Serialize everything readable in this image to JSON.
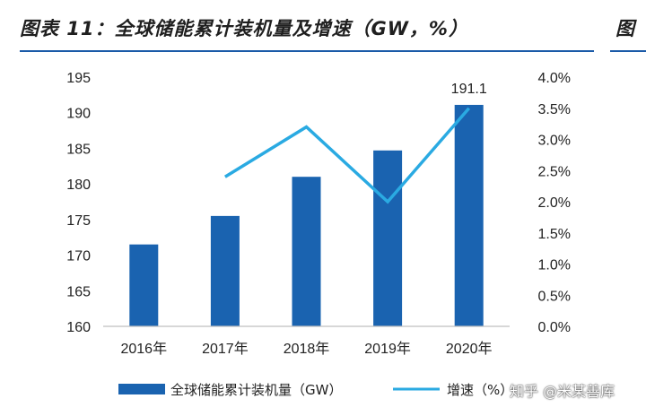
{
  "header": {
    "title": "图表 11：全球储能累计装机量及增速（GW，%）",
    "clipped_title": "图"
  },
  "chart_data": {
    "type": "bar",
    "categories": [
      "2016年",
      "2017年",
      "2018年",
      "2019年",
      "2020年"
    ],
    "series": [
      {
        "name": "全球储能累计装机量（GW）",
        "kind": "bar",
        "axis": "left",
        "color": "#1a63b0",
        "values": [
          171.5,
          175.5,
          181.0,
          184.7,
          191.1
        ]
      },
      {
        "name": "增速（%）",
        "kind": "line",
        "axis": "right",
        "color": "#2aaae2",
        "values": [
          null,
          2.4,
          3.2,
          2.0,
          3.5
        ]
      }
    ],
    "data_labels": [
      {
        "category": "2020年",
        "text": "191.1"
      }
    ],
    "y_left": {
      "min": 160,
      "max": 195,
      "ticks": [
        "160",
        "165",
        "170",
        "175",
        "180",
        "185",
        "190",
        "195"
      ]
    },
    "y_right": {
      "min": 0,
      "max": 4,
      "ticks": [
        "0.0%",
        "0.5%",
        "1.0%",
        "1.5%",
        "2.0%",
        "2.5%",
        "3.0%",
        "3.5%",
        "4.0%"
      ]
    },
    "legend": [
      {
        "label": "全球储能累计装机量（GW）",
        "type": "bar"
      },
      {
        "label": "增速（%）",
        "type": "line"
      }
    ],
    "legend_position": "bottom"
  },
  "watermark": "知乎 @米某善库"
}
